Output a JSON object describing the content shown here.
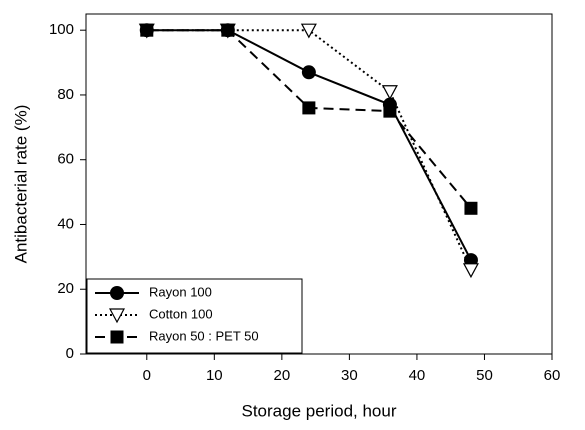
{
  "chart_data": {
    "type": "line",
    "x_label": "Storage period, hour",
    "y_label": "Antibacterial rate (%)",
    "xlim": [
      -9,
      60
    ],
    "xticks": [
      0,
      10,
      20,
      30,
      40,
      50,
      60
    ],
    "ylim": [
      0,
      105
    ],
    "yticks": [
      0,
      20,
      40,
      60,
      80,
      100
    ],
    "grid": false,
    "legend": "lower left",
    "series": [
      {
        "name": "Rayon 100",
        "color": "#000000",
        "marker": "circle",
        "line_style": "solid",
        "x": [
          0,
          12,
          24,
          36,
          48
        ],
        "values": [
          100,
          100,
          87,
          77,
          29
        ]
      },
      {
        "name": "Cotton 100",
        "color": "#000000",
        "marker": "triangle-down-open",
        "line_style": "dotted",
        "x": [
          0,
          12,
          24,
          36,
          48
        ],
        "values": [
          100,
          100,
          100,
          81,
          26
        ]
      },
      {
        "name": "Rayon 50 : PET 50",
        "color": "#000000",
        "marker": "square",
        "line_style": "dashed",
        "x": [
          0,
          12,
          24,
          36,
          48
        ],
        "values": [
          100,
          100,
          76,
          75,
          45
        ]
      }
    ]
  }
}
